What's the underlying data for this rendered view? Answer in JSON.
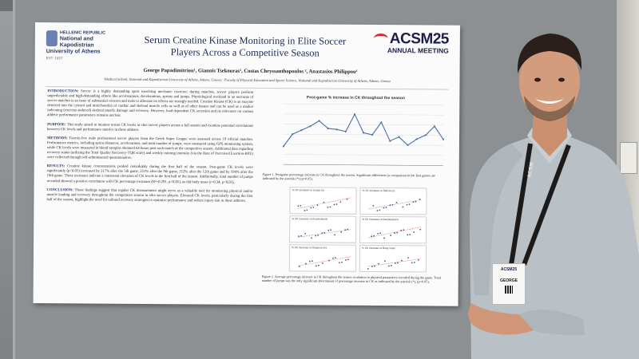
{
  "poster": {
    "university": {
      "line1": "HELLENIC REPUBLIC",
      "line2": "National and Kapodistrian",
      "line3": "University of Athens",
      "line4": "EST. 1837"
    },
    "title_line1": "Serum Creatine Kinase Monitoring in Elite Soccer",
    "title_line2": "Players Across a Competitive Season",
    "conference_logo": "ACSM25",
    "conference_sub": "ANNUAL MEETING",
    "authors": "George Papadimitriou¹, Giannis Tsekouras¹, Costas Chryssanthopoulos ², Anastasios Philippou¹",
    "affiliation": "¹Medical School, National and Kapodistrian University of Athens, Athens, Greece; ²Faculty of Physical Education and Sports Science, National and Kapodistrian University of Athens, Athens, Greece",
    "sections": [
      {
        "head": "INTRODUCTION:",
        "body": "Soccer is a highly demanding sport involving mechanic exercise; during matches, soccer players perform unpredictable and high-demanding efforts like accelerations, decelerations, sprints and jumps. Physiological overload in an outcome of soccer matches is an issue of substantial concern and tools to alleviate its effects are strongly needed. Creatine Kinase (CK) is an enzyme detected into the cytosol and mitochondria of cardiac and skeletal muscle cells as well as of other tissues and can be used as a marker indicating (exercise-induced) skeletal muscle damage and recovery. However, load dependent CK secretion and its relevance on various athletic performance parameters remains unclear."
      },
      {
        "head": "PURPOSE:",
        "body": "This study aimed to monitor serum CK levels in elite soccer players across a full season and examine potential correlations between CK levels and performance metrics in these athletes."
      },
      {
        "head": "METHODS:",
        "body": "Twenty-five male professional soccer players from the Greek Super League were assessed across 19 official matches. Performance metrics, including sprint distances, accelerations, and total number of jumps, were measured using GPS monitoring system, while CK levels were measured in blood samples obtained 64 hours post each match of the competitive season. Additional data regarding recovery status (utilizing the Total Quality Recovery-TQR scale) and weekly training intensity (via the Rate of Perceived Exertion-RPE) were collected through self-administered questionnaires."
      },
      {
        "head": "RESULTS:",
        "body": "Creatine kinase concentrations peaked remarkably during the first half of the season. Post-game CK levels were significantly (p<0.05) increased by 217% after the 5th game, 251% after the 9th game, 212% after the 12th game and by 194% after the 18th game. These increases indicate a consistent elevation of CK levels in the first half of the season. Additionally, total number of jumps recorded showed a positive correlation with CK percentage increases (R²=0.291, p<0.05), as did body mass (r=0.34, p<0.05)."
      },
      {
        "head": "CONCLUSION:",
        "body": "These findings suggest that regular CK measurement might serve as a valuable tool for monitoring physical and/or muscle loading and recovery throughout the competitive season in elite soccer players. Elevated CK levels, particularly during the first half of the season, highlight the need for tailored recovery strategies to optimize performance and reduce injury risk in these athletes."
      }
    ],
    "figure1_title": "Post-game % increase in CK throughout the season",
    "figure1_caption": "Figure 1. Postgame percentage increase in CK throughout the season. Significant differences in comparison to the first games are indicated by the asterisk (*) (p<0.05).",
    "figure2_caption": "Figure 2. Average percentage increase in CK throughout the season in relation to physical parameters recorded during the game. Total number of jumps was the only significant determinant of percentage increase in CK as indicated by the asterisk (*), (p<0.05).",
    "panel_titles": [
      "% CK increase vs Jumps (n)",
      "% CK increase vs Sprints (n)",
      "% CK increase vs Accelerations",
      "% CK increase vs Decelerations",
      "% CK increase vs Distance (m)",
      "% CK increase vs Body mass",
      "% CK increase vs HSR (m)",
      "% CK increase vs RPE"
    ]
  },
  "badge": {
    "logo": "ACSM25",
    "name": "GEORGE"
  },
  "lanyard_text": "ACSM",
  "colors": {
    "poster_title": "#1f2a57",
    "acsm_red": "#e0262e",
    "shirt": "#b9c0c6",
    "wall": "#8d9092"
  },
  "chart_data": [
    {
      "type": "line",
      "title": "Post-game % increase in CK throughout the season",
      "x": [
        1,
        2,
        3,
        4,
        5,
        6,
        7,
        8,
        9,
        10,
        11,
        12,
        13,
        14,
        15,
        16,
        17,
        18,
        19
      ],
      "series": [
        {
          "values": [
            90,
            150,
            170,
            190,
            217,
            180,
            175,
            165,
            251,
            160,
            150,
            212,
            120,
            140,
            100,
            130,
            150,
            194,
            130
          ]
        }
      ],
      "ylim": [
        0,
        300
      ],
      "grid": true
    }
  ]
}
